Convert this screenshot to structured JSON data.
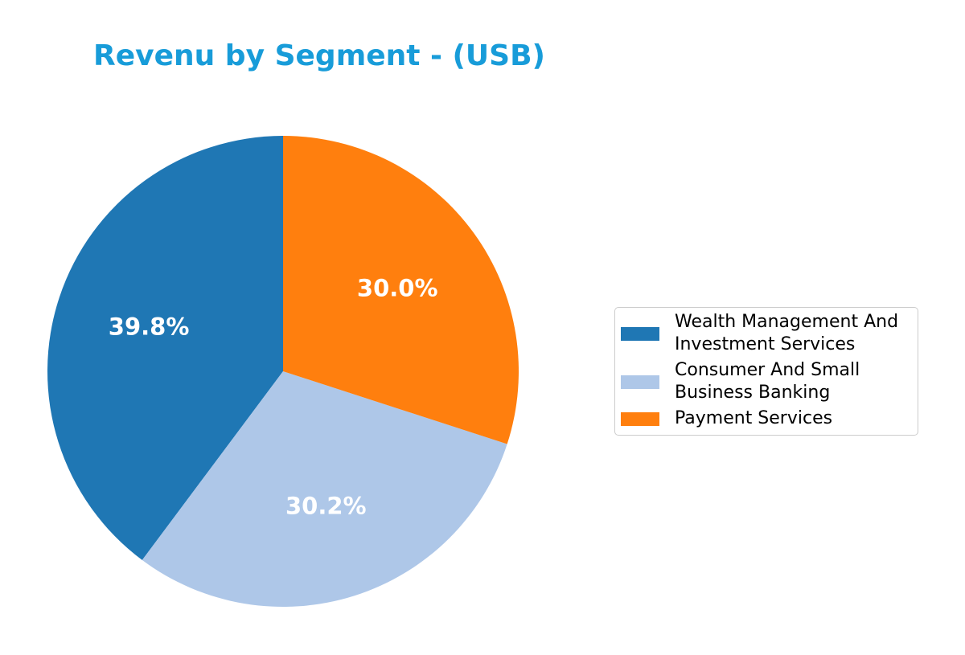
{
  "header": {
    "title": "Revenu by Segment - (USB)",
    "title_color": "#189CD9"
  },
  "chart_data": {
    "type": "pie",
    "title": "Revenu by Segment - (USB)",
    "categories": [
      "Wealth Management And Investment Services",
      "Consumer And Small Business Banking",
      "Payment Services"
    ],
    "values": [
      39.8,
      30.2,
      30.0
    ],
    "autopct_labels": [
      "39.8%",
      "30.2%",
      "30.0%"
    ],
    "slice_colors": [
      "#1F77B4",
      "#AEC7E8",
      "#FF7F0E"
    ],
    "pct_label_color": "#FFFFFF",
    "start_angle": 90,
    "direction": "counterclockwise",
    "pct_label_distance": 0.6,
    "legend_position": "center right"
  },
  "legend": {
    "items": [
      {
        "line1": "Wealth Management And",
        "line2": "Investment Services",
        "color": "#1F77B4"
      },
      {
        "line1": "Consumer And Small",
        "line2": "Business Banking",
        "color": "#AEC7E8"
      },
      {
        "line1": "Payment Services",
        "line2": "",
        "color": "#FF7F0E"
      }
    ]
  }
}
